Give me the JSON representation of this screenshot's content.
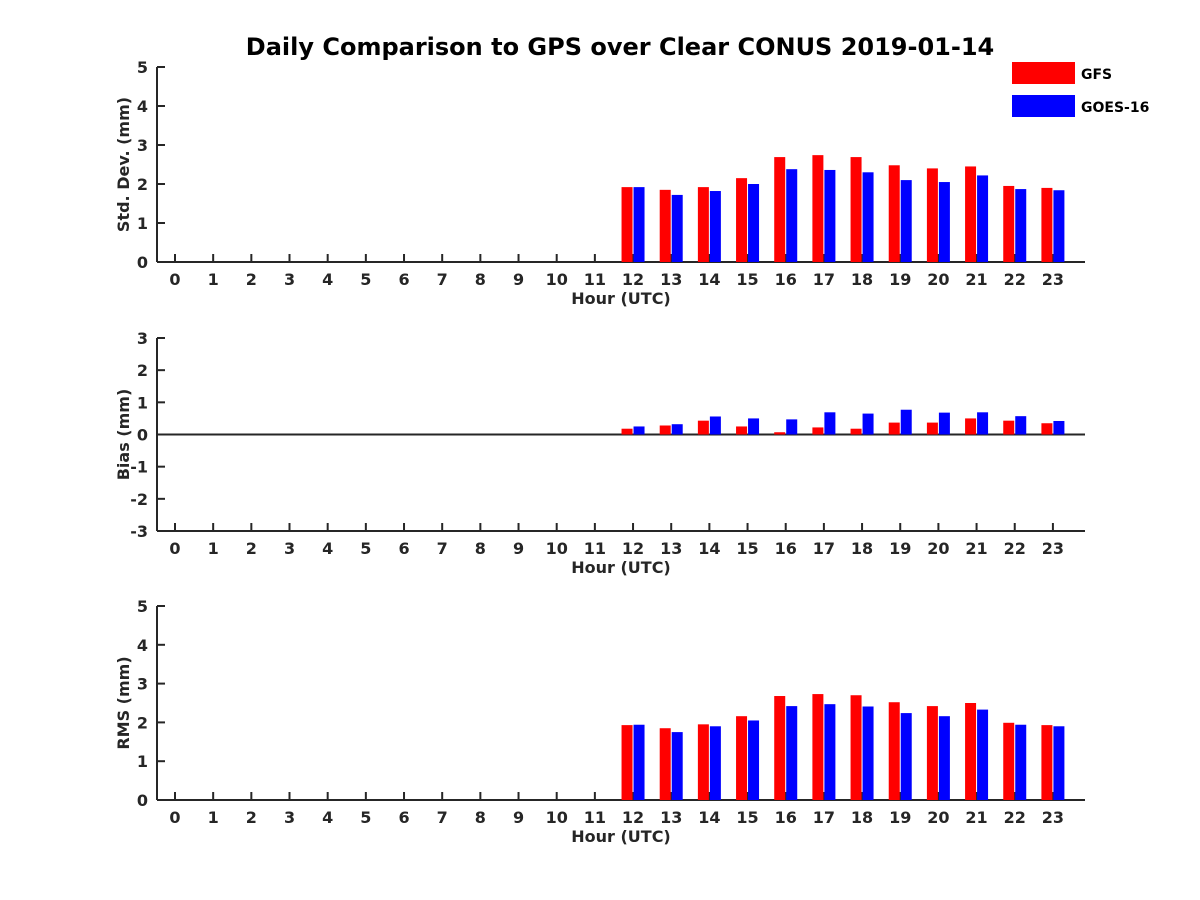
{
  "title": "Daily Comparison to GPS over Clear CONUS 2019-01-14",
  "legend": {
    "position": "top-right",
    "entries": [
      {
        "name": "GFS",
        "color": "#ff0000"
      },
      {
        "name": "GOES-16",
        "color": "#0000ff"
      }
    ]
  },
  "chart_data": [
    {
      "type": "bar",
      "xlabel": "Hour (UTC)",
      "ylabel": "Std. Dev. (mm)",
      "ylim": [
        0,
        5
      ],
      "yticks": [
        "0",
        "1",
        "2",
        "3",
        "4",
        "5"
      ],
      "categories": [
        "0",
        "1",
        "2",
        "3",
        "4",
        "5",
        "6",
        "7",
        "8",
        "9",
        "10",
        "11",
        "12",
        "13",
        "14",
        "15",
        "16",
        "17",
        "18",
        "19",
        "20",
        "21",
        "22",
        "23"
      ],
      "series": [
        {
          "name": "GFS",
          "color": "#ff0000",
          "values": [
            null,
            null,
            null,
            null,
            null,
            null,
            null,
            null,
            null,
            null,
            null,
            null,
            1.92,
            1.85,
            1.92,
            2.15,
            2.69,
            2.74,
            2.69,
            2.48,
            2.4,
            2.45,
            1.95,
            1.9
          ]
        },
        {
          "name": "GOES-16",
          "color": "#0000ff",
          "values": [
            null,
            null,
            null,
            null,
            null,
            null,
            null,
            null,
            null,
            null,
            null,
            null,
            1.92,
            1.72,
            1.82,
            2.0,
            2.38,
            2.36,
            2.3,
            2.1,
            2.05,
            2.22,
            1.87,
            1.84
          ]
        }
      ]
    },
    {
      "type": "bar",
      "xlabel": "Hour (UTC)",
      "ylabel": "Bias (mm)",
      "ylim": [
        -3,
        3
      ],
      "yticks": [
        "-3",
        "-2",
        "-1",
        "0",
        "1",
        "2",
        "3"
      ],
      "zero_line": true,
      "categories": [
        "0",
        "1",
        "2",
        "3",
        "4",
        "5",
        "6",
        "7",
        "8",
        "9",
        "10",
        "11",
        "12",
        "13",
        "14",
        "15",
        "16",
        "17",
        "18",
        "19",
        "20",
        "21",
        "22",
        "23"
      ],
      "series": [
        {
          "name": "GFS",
          "color": "#ff0000",
          "values": [
            null,
            null,
            null,
            null,
            null,
            null,
            null,
            null,
            null,
            null,
            null,
            null,
            0.18,
            0.28,
            0.43,
            0.25,
            0.07,
            0.22,
            0.18,
            0.37,
            0.37,
            0.5,
            0.43,
            0.35
          ]
        },
        {
          "name": "GOES-16",
          "color": "#0000ff",
          "values": [
            null,
            null,
            null,
            null,
            null,
            null,
            null,
            null,
            null,
            null,
            null,
            null,
            0.25,
            0.32,
            0.56,
            0.5,
            0.47,
            0.69,
            0.65,
            0.77,
            0.68,
            0.69,
            0.57,
            0.42
          ]
        }
      ]
    },
    {
      "type": "bar",
      "xlabel": "Hour (UTC)",
      "ylabel": "RMS (mm)",
      "ylim": [
        0,
        5
      ],
      "yticks": [
        "0",
        "1",
        "2",
        "3",
        "4",
        "5"
      ],
      "categories": [
        "0",
        "1",
        "2",
        "3",
        "4",
        "5",
        "6",
        "7",
        "8",
        "9",
        "10",
        "11",
        "12",
        "13",
        "14",
        "15",
        "16",
        "17",
        "18",
        "19",
        "20",
        "21",
        "22",
        "23"
      ],
      "series": [
        {
          "name": "GFS",
          "color": "#ff0000",
          "values": [
            null,
            null,
            null,
            null,
            null,
            null,
            null,
            null,
            null,
            null,
            null,
            null,
            1.93,
            1.85,
            1.95,
            2.16,
            2.68,
            2.73,
            2.7,
            2.52,
            2.42,
            2.5,
            1.99,
            1.93
          ]
        },
        {
          "name": "GOES-16",
          "color": "#0000ff",
          "values": [
            null,
            null,
            null,
            null,
            null,
            null,
            null,
            null,
            null,
            null,
            null,
            null,
            1.94,
            1.75,
            1.9,
            2.05,
            2.42,
            2.47,
            2.41,
            2.24,
            2.16,
            2.33,
            1.94,
            1.9
          ]
        }
      ]
    }
  ]
}
